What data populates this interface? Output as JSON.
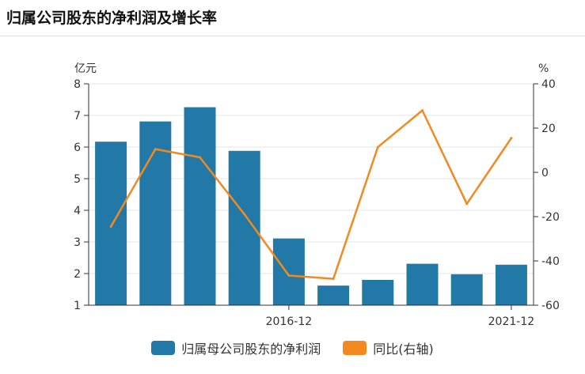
{
  "title": "归属公司股东的净利润及增长率",
  "colors": {
    "bar": "#2278a6",
    "line": "#f28a1f",
    "grid": "#e6e6e6",
    "axis": "#333333"
  },
  "chart_data": {
    "type": "bar",
    "title": "归属公司股东的净利润及增长率",
    "left_axis": {
      "unit": "亿元",
      "ticks": [
        "1",
        "2",
        "3",
        "4",
        "5",
        "6",
        "7",
        "8"
      ],
      "ylim": [
        1,
        8
      ]
    },
    "right_axis": {
      "unit": "%",
      "ticks": [
        "-60",
        "-40",
        "-20",
        "0",
        "20",
        "40"
      ],
      "ylim": [
        -60,
        40
      ]
    },
    "x_tick_labels": [
      {
        "index": 4,
        "label": "2016-12"
      },
      {
        "index": 9,
        "label": "2021-12"
      }
    ],
    "categories": [
      "",
      "",
      "",
      "",
      "2016-12",
      "",
      "",
      "",
      "",
      "2021-12"
    ],
    "series": [
      {
        "name": "归属母公司股东的净利润",
        "type": "bar",
        "axis": "left",
        "values": [
          6.17,
          6.81,
          7.26,
          5.88,
          3.11,
          1.62,
          1.8,
          2.31,
          1.98,
          2.28
        ]
      },
      {
        "name": "同比(右轴)",
        "type": "line",
        "axis": "right",
        "values": [
          -24.5,
          10.5,
          6.8,
          -18.9,
          -46.6,
          -48.1,
          11.4,
          28.0,
          -14.2,
          15.5
        ]
      }
    ],
    "grid": true,
    "legend_position": "bottom"
  }
}
